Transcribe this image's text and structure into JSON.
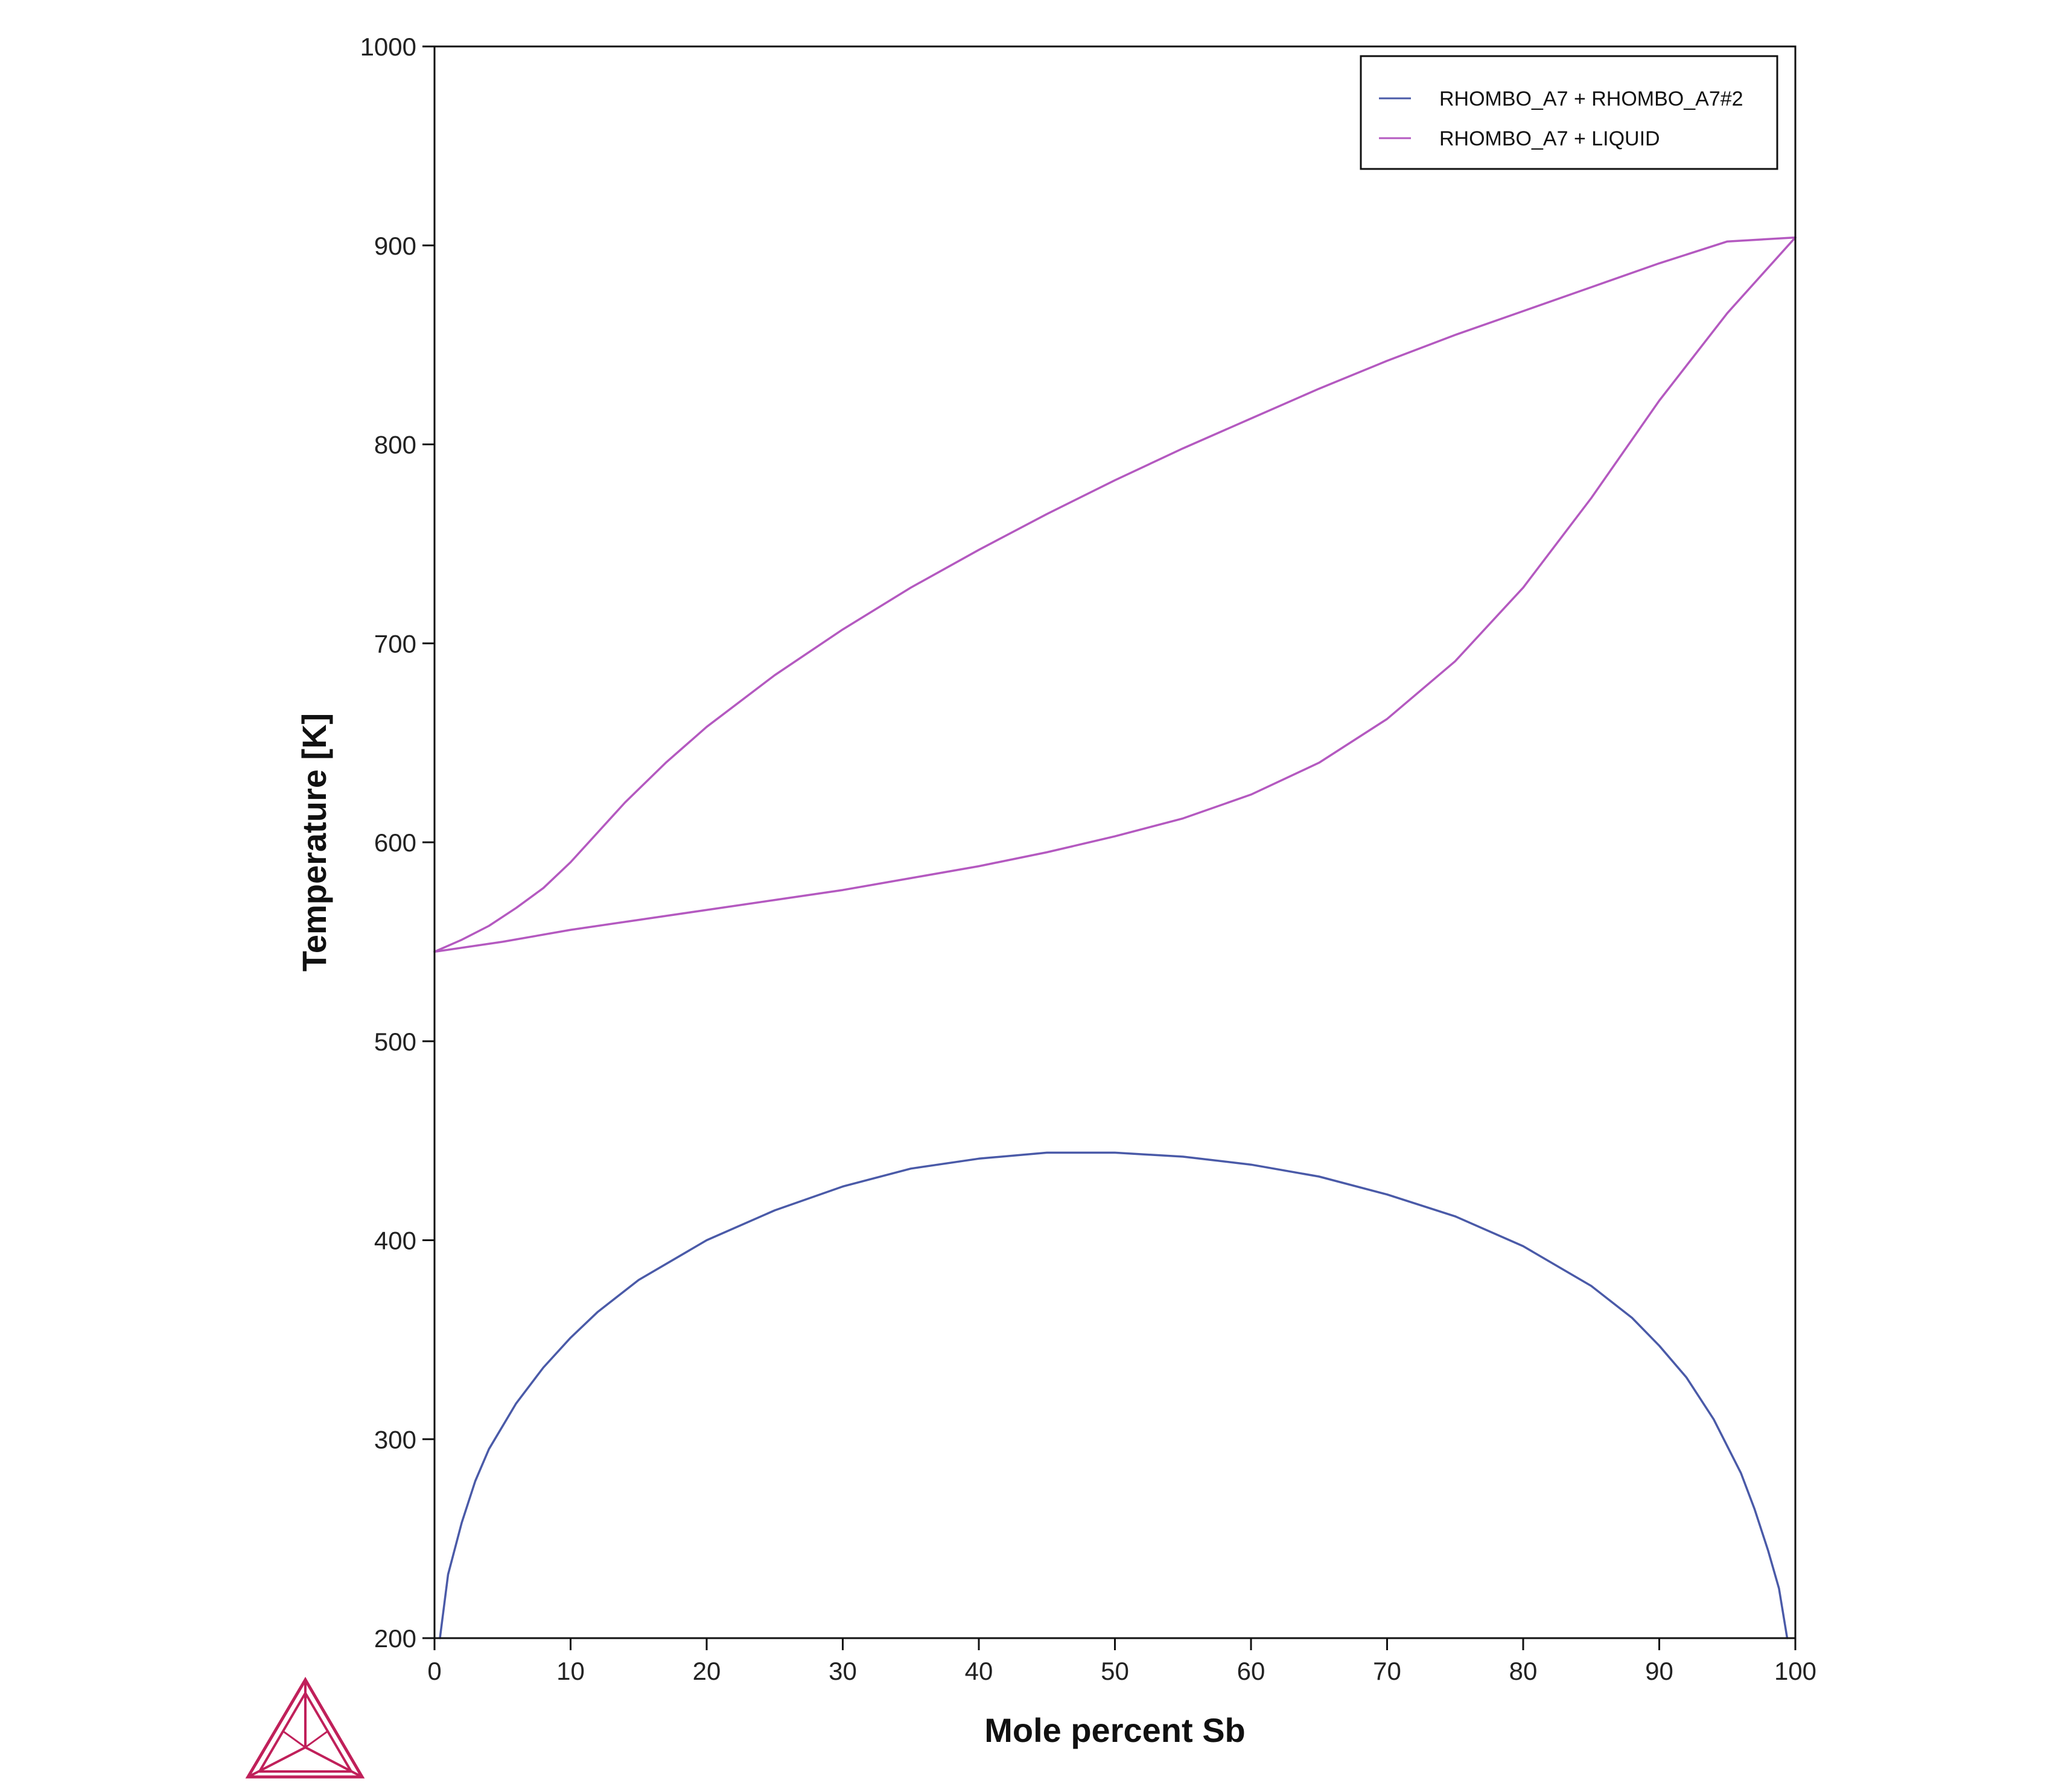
{
  "chart_data": {
    "type": "line",
    "xlabel": "Mole percent Sb",
    "ylabel": "Temperature [K]",
    "xlim": [
      0,
      100
    ],
    "ylim": [
      200,
      1000
    ],
    "x_ticks": [
      0,
      10,
      20,
      30,
      40,
      50,
      60,
      70,
      80,
      90,
      100
    ],
    "y_ticks": [
      200,
      300,
      400,
      500,
      600,
      700,
      800,
      900,
      1000
    ],
    "grid": false,
    "legend_position": "top-right",
    "series": [
      {
        "name": "RHOMBO_A7 + RHOMBO_A7#2",
        "color": "#4a5aa8",
        "curves": [
          {
            "x": [
              0.4,
              1,
              2,
              3,
              4,
              6,
              8,
              10,
              12,
              15,
              20,
              25,
              30,
              35,
              40,
              45,
              48,
              50,
              55,
              60,
              65,
              70,
              75,
              80,
              85,
              88,
              90,
              92,
              94,
              96,
              97,
              98,
              98.8,
              99.4
            ],
            "y": [
              200,
              232,
              258,
              279,
              295,
              318,
              336,
              351,
              364,
              380,
              400,
              415,
              427,
              436,
              441,
              444,
              444,
              444,
              442,
              438,
              432,
              423,
              412,
              397,
              377,
              361,
              347,
              331,
              310,
              283,
              265,
              244,
              225,
              200
            ]
          }
        ]
      },
      {
        "name": "RHOMBO_A7 + LIQUID",
        "color": "#b459c0",
        "curves": [
          {
            "x": [
              0,
              2,
              4,
              6,
              8,
              10,
              12,
              14,
              17,
              20,
              25,
              30,
              35,
              40,
              45,
              50,
              55,
              60,
              65,
              70,
              75,
              80,
              85,
              90,
              95,
              100
            ],
            "y": [
              545,
              551,
              558,
              567,
              577,
              590,
              605,
              620,
              640,
              658,
              684,
              707,
              728,
              747,
              765,
              782,
              798,
              813,
              828,
              842,
              855,
              867,
              879,
              891,
              902,
              904
            ]
          },
          {
            "x": [
              0,
              5,
              10,
              15,
              20,
              25,
              30,
              35,
              40,
              45,
              50,
              55,
              60,
              65,
              70,
              75,
              80,
              85,
              90,
              95,
              100
            ],
            "y": [
              545,
              550,
              556,
              561,
              566,
              571,
              576,
              582,
              588,
              595,
              603,
              612,
              624,
              640,
              662,
              691,
              728,
              773,
              822,
              866,
              904
            ]
          }
        ]
      }
    ]
  },
  "branding": {
    "logo_icon": "thermo-calc-triangle-logo",
    "logo_color": "#c0205a"
  }
}
